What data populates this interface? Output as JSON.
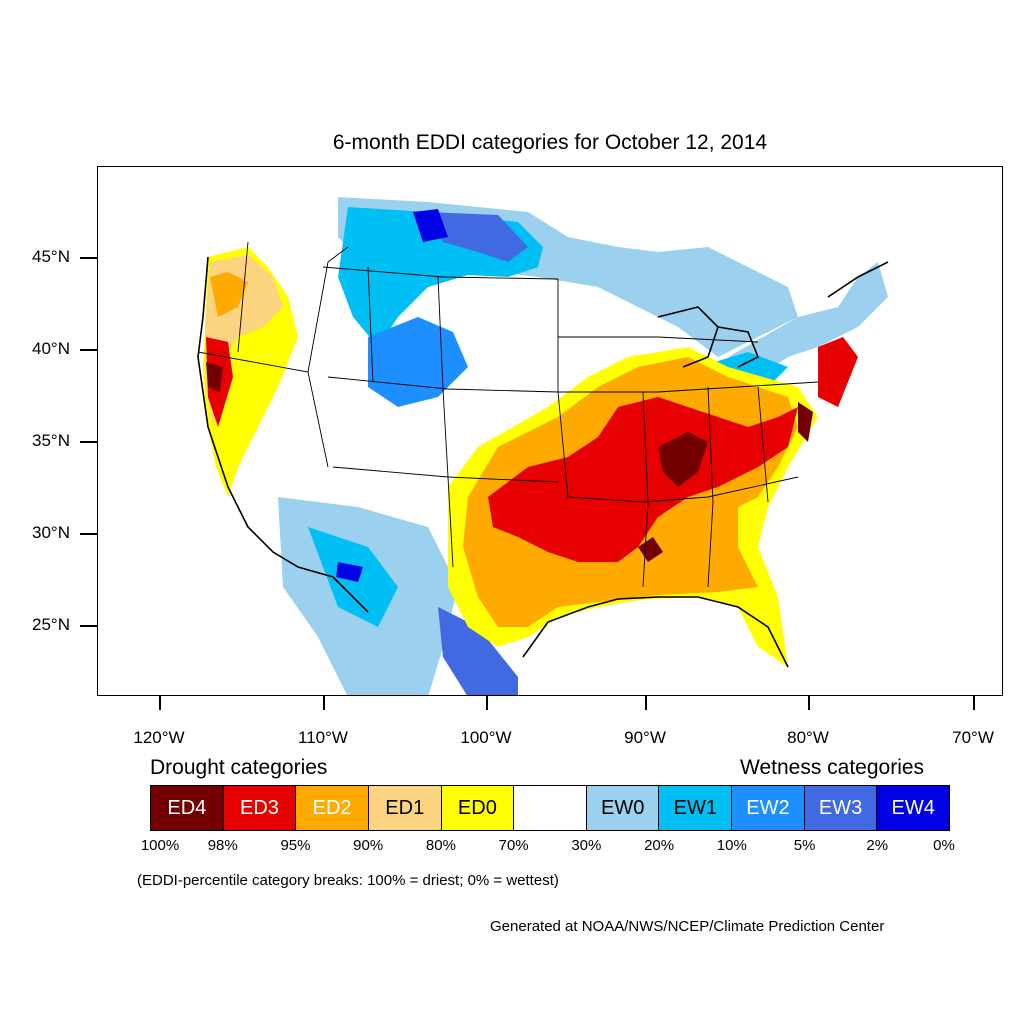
{
  "title": "6-month EDDI categories for October 12, 2014",
  "axes": {
    "lat_labels": [
      "45°N",
      "40°N",
      "35°N",
      "30°N",
      "25°N"
    ],
    "lon_labels": [
      "120°W",
      "110°W",
      "100°W",
      "90°W",
      "80°W",
      "70°W"
    ]
  },
  "legend": {
    "drought_heading": "Drought categories",
    "wetness_heading": "Wetness categories",
    "categories": [
      {
        "label": "ED4",
        "color": "#730000",
        "text_color": "#ffffff"
      },
      {
        "label": "ED3",
        "color": "#e60000",
        "text_color": "#ffffff"
      },
      {
        "label": "ED2",
        "color": "#ffaa00",
        "text_color": "#ffffff"
      },
      {
        "label": "ED1",
        "color": "#fcd37f",
        "text_color": "#000000"
      },
      {
        "label": "ED0",
        "color": "#ffff00",
        "text_color": "#000000"
      },
      {
        "label": "",
        "color": "#ffffff",
        "text_color": "#000000"
      },
      {
        "label": "EW0",
        "color": "#9bd0ef",
        "text_color": "#000000"
      },
      {
        "label": "EW1",
        "color": "#00bff5",
        "text_color": "#000000"
      },
      {
        "label": "EW2",
        "color": "#1e8fff",
        "text_color": "#ffffff"
      },
      {
        "label": "EW3",
        "color": "#4169e1",
        "text_color": "#ffffff"
      },
      {
        "label": "EW4",
        "color": "#0000e6",
        "text_color": "#ffffff"
      }
    ],
    "breaks": [
      "100%",
      "98%",
      "95%",
      "90%",
      "80%",
      "70%",
      "30%",
      "20%",
      "10%",
      "5%",
      "2%",
      "0%"
    ]
  },
  "note": "(EDDI-percentile category breaks: 100% = driest; 0% = wettest)",
  "credit": "Generated at NOAA/NWS/NCEP/Climate Prediction Center"
}
